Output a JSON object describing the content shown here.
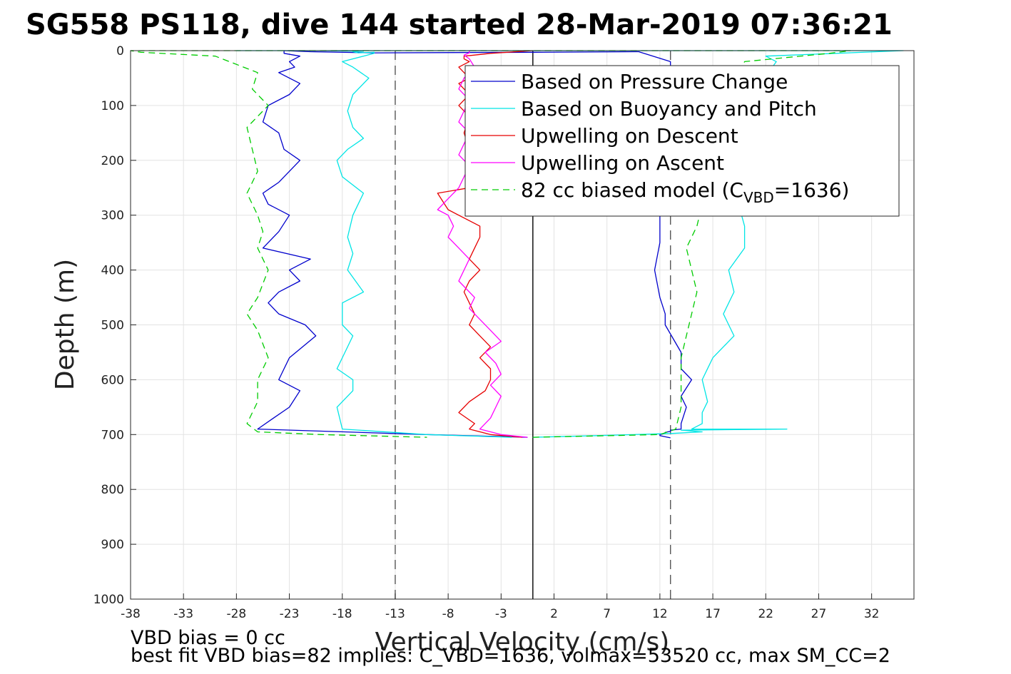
{
  "chart_data": {
    "type": "line",
    "title": "SG558 PS118, dive 144 started 28-Mar-2019 07:36:21",
    "xlabel": "Vertical Velocity (cm/s)",
    "ylabel": "Depth (m)",
    "xlim": [
      -38,
      36
    ],
    "ylim": [
      0,
      1000
    ],
    "y_reversed": true,
    "x_ticks": [
      "-38",
      "-33",
      "-28",
      "-23",
      "-18",
      "-13",
      "-8",
      "-3",
      "2",
      "7",
      "12",
      "17",
      "22",
      "27",
      "32"
    ],
    "y_ticks": [
      "0",
      "100",
      "200",
      "300",
      "400",
      "500",
      "600",
      "700",
      "800",
      "900",
      "1000"
    ],
    "grid": true,
    "legend_position": "top-right",
    "reference_lines": [
      {
        "x": -13,
        "style": "dashed",
        "color": "#555555"
      },
      {
        "x": 0,
        "style": "solid",
        "color": "#000000"
      },
      {
        "x": 13,
        "style": "dashed",
        "color": "#555555"
      }
    ],
    "series": [
      {
        "name": "Based on Pressure Change",
        "color": "#0000cc",
        "style": "solid",
        "x": [
          -0.5,
          -10,
          -26,
          -24.5,
          -23,
          -22,
          -24,
          -23,
          -20.5,
          -21.5,
          -24,
          -25,
          -24,
          -22,
          -23,
          -21,
          -25.5,
          -24,
          -23,
          -25,
          -25.5,
          -24,
          -23,
          -22,
          -23.5,
          -24,
          -25.5,
          -25,
          -23,
          -22,
          -24,
          -22.5,
          -23,
          -22,
          -23.5,
          -23.5,
          -21,
          -15,
          0,
          10,
          13,
          13,
          12,
          12,
          11.5,
          12,
          12.5,
          12.5,
          14,
          14,
          15,
          14,
          14.5,
          14,
          14,
          13,
          13,
          12.5,
          12.5,
          12,
          12,
          12.5,
          13
        ],
        "y": [
          705,
          700,
          690,
          670,
          650,
          620,
          600,
          560,
          520,
          500,
          480,
          460,
          440,
          420,
          400,
          380,
          360,
          330,
          300,
          280,
          260,
          240,
          220,
          200,
          180,
          150,
          130,
          100,
          80,
          60,
          40,
          30,
          20,
          10,
          5,
          0,
          2,
          4,
          3,
          2,
          20,
          100,
          300,
          350,
          400,
          450,
          480,
          500,
          550,
          580,
          600,
          630,
          650,
          680,
          690,
          692,
          694,
          696,
          698,
          700,
          702,
          704,
          706
        ]
      },
      {
        "name": "Based on Buoyancy and Pitch",
        "color": "#00e5e5",
        "style": "solid",
        "x": [
          -2,
          -10,
          -18,
          -18.5,
          -17,
          -17,
          -18.5,
          -18,
          -17,
          -18,
          -18,
          -16,
          -17.5,
          -17,
          -17.5,
          -17,
          -16,
          -18,
          -18.5,
          -17.5,
          -16,
          -17,
          -17.5,
          -17,
          -15.5,
          -17,
          -18,
          -16,
          -15,
          -15,
          -16.5,
          -17,
          -16,
          -20,
          -28,
          -10,
          5,
          20,
          35,
          22,
          23,
          20,
          19,
          20,
          20,
          18.5,
          19,
          18,
          19,
          17,
          16,
          16.5,
          16,
          16,
          15,
          24,
          14,
          16,
          13,
          6,
          0
        ],
        "y": [
          705,
          700,
          690,
          650,
          620,
          600,
          580,
          560,
          520,
          500,
          460,
          440,
          400,
          370,
          340,
          300,
          260,
          230,
          200,
          180,
          160,
          140,
          110,
          80,
          50,
          30,
          20,
          10,
          5,
          3,
          4,
          2,
          1,
          0,
          0,
          0,
          0,
          0,
          0,
          10,
          20,
          100,
          250,
          320,
          360,
          400,
          440,
          480,
          520,
          560,
          600,
          640,
          660,
          680,
          690,
          690,
          692,
          695,
          698,
          702,
          705
        ]
      },
      {
        "name": "Upwelling on Descent",
        "color": "#e60000",
        "style": "solid",
        "x": [
          -1,
          -4,
          -6,
          -5.5,
          -7,
          -6,
          -4.5,
          -4,
          -4,
          -5,
          -4,
          -5,
          -6,
          -5.5,
          -6,
          -6.5,
          -6,
          -5,
          -6,
          -5.5,
          -5,
          -5,
          -8,
          -9,
          -6,
          -5,
          -5.5,
          -6,
          -6.5,
          -6,
          -7,
          -6,
          -7,
          -6,
          -6.5,
          -7,
          -6,
          -6.5,
          -6.5,
          -5.5,
          -4,
          0
        ],
        "y": [
          705,
          700,
          690,
          680,
          660,
          640,
          620,
          600,
          580,
          560,
          540,
          520,
          500,
          480,
          460,
          440,
          420,
          400,
          380,
          360,
          340,
          320,
          290,
          260,
          250,
          230,
          200,
          180,
          150,
          120,
          100,
          80,
          60,
          50,
          40,
          30,
          20,
          15,
          10,
          8,
          5,
          0
        ]
      },
      {
        "name": "Upwelling on Ascent",
        "color": "#ff00ff",
        "style": "solid",
        "x": [
          -0.5,
          -3,
          -5,
          -4,
          -3.5,
          -3,
          -4,
          -3,
          -3.5,
          -4.5,
          -3,
          -4,
          -5,
          -6,
          -5.5,
          -7,
          -6.5,
          -6,
          -7,
          -8,
          -7.5,
          -8,
          -9,
          -8,
          -7,
          -6.5,
          -6,
          -7,
          -6.5,
          -6,
          -7,
          -6.5,
          -6,
          -7,
          -6.5,
          -5.5,
          -6,
          -6.5,
          -6,
          -6
        ],
        "y": [
          705,
          700,
          690,
          670,
          650,
          630,
          610,
          590,
          570,
          550,
          530,
          510,
          490,
          470,
          450,
          420,
          400,
          380,
          360,
          340,
          320,
          300,
          290,
          270,
          250,
          230,
          210,
          190,
          170,
          150,
          130,
          110,
          90,
          70,
          50,
          30,
          15,
          8,
          4,
          0
        ]
      },
      {
        "name": "82 cc biased model (C_VBD=1636)",
        "color": "#00cc00",
        "style": "dashed",
        "x": [
          0,
          12,
          13.5,
          14,
          14,
          14,
          14.5,
          15,
          15.5,
          15,
          14.5,
          15.5,
          16,
          18,
          20,
          28,
          30,
          -38,
          -37,
          -30,
          -26,
          -26.5,
          -25,
          -27,
          -26.5,
          -26,
          -27,
          -26,
          -25.5,
          -26,
          -25,
          -26,
          -27,
          -26,
          -25,
          -26,
          -26,
          -27,
          -26,
          -20,
          -10
        ],
        "y": [
          705,
          700,
          690,
          650,
          600,
          560,
          520,
          480,
          440,
          400,
          360,
          320,
          280,
          100,
          20,
          5,
          0,
          0,
          3,
          10,
          40,
          70,
          100,
          140,
          180,
          220,
          260,
          300,
          330,
          360,
          400,
          450,
          480,
          510,
          560,
          600,
          640,
          680,
          695,
          700,
          705
        ]
      }
    ],
    "annotations": [
      "VBD bias = 0 cc",
      "best fit VBD bias=82 implies: C_VBD=1636, volmax=53520 cc, max SM_CC=2"
    ]
  },
  "legend": {
    "items": [
      {
        "label": "Based on Pressure Change",
        "color": "#0000cc",
        "dash": ""
      },
      {
        "label": "Based on Buoyancy and Pitch",
        "color": "#00e5e5",
        "dash": ""
      },
      {
        "label": "Upwelling on Descent",
        "color": "#e60000",
        "dash": ""
      },
      {
        "label": "Upwelling on Ascent",
        "color": "#ff00ff",
        "dash": ""
      },
      {
        "label_main": "82 cc biased model (C",
        "label_sub": "VBD",
        "label_tail": "=1636)",
        "color": "#00cc00",
        "dash": "9,6"
      }
    ]
  },
  "notes": {
    "line1": "VBD bias = 0 cc",
    "line2": "best fit VBD bias=82 implies: C_VBD=1636, volmax=53520 cc, max SM_CC=2"
  }
}
